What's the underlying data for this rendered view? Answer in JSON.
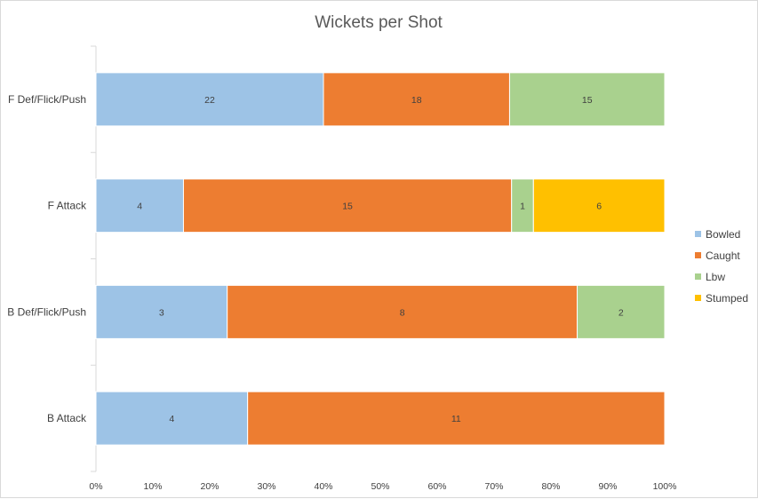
{
  "chart_data": {
    "type": "bar",
    "orientation": "horizontal",
    "stacked": "percent",
    "title": "Wickets per Shot",
    "categories": [
      "F Def/Flick/Push",
      "F Attack",
      "B Def/Flick/Push",
      "B Attack"
    ],
    "series": [
      {
        "name": "Bowled",
        "color": "#9DC3E6",
        "values": [
          22,
          4,
          3,
          4
        ]
      },
      {
        "name": "Caught",
        "color": "#ED7D31",
        "values": [
          18,
          15,
          8,
          11
        ]
      },
      {
        "name": "Lbw",
        "color": "#A9D18E",
        "values": [
          15,
          1,
          2,
          0
        ]
      },
      {
        "name": "Stumped",
        "color": "#FFC000",
        "values": [
          0,
          6,
          0,
          0
        ]
      }
    ],
    "x_ticks": [
      "0%",
      "10%",
      "20%",
      "30%",
      "40%",
      "50%",
      "60%",
      "70%",
      "80%",
      "90%",
      "100%"
    ],
    "xlim": [
      0,
      100
    ],
    "grid": false,
    "legend_position": "right"
  }
}
